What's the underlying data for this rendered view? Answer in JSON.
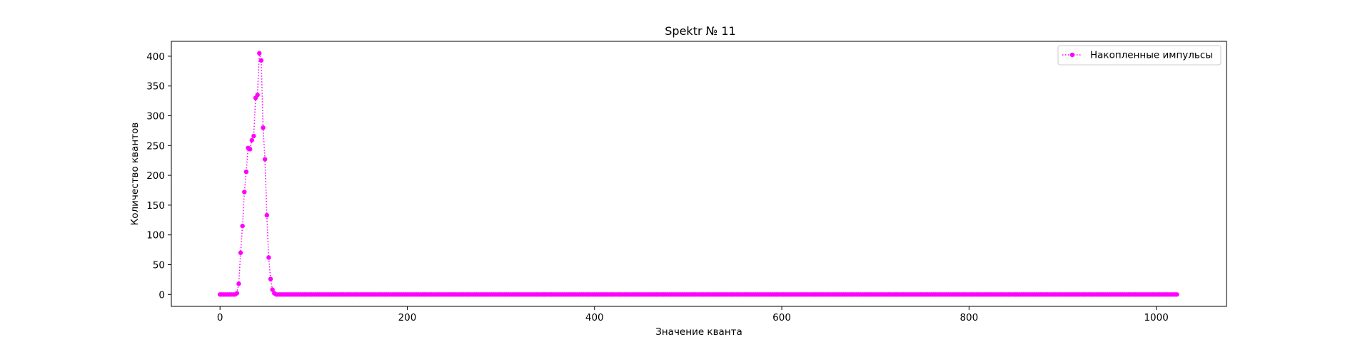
{
  "chart_data": {
    "type": "line",
    "title": "Spektr № 11",
    "xlabel": "Значение кванта",
    "ylabel": "Количество квантов",
    "xlim": [
      -52,
      1075
    ],
    "ylim": [
      -20,
      425
    ],
    "x_ticks": [
      0,
      200,
      400,
      600,
      800,
      1000
    ],
    "y_ticks": [
      0,
      50,
      100,
      150,
      200,
      250,
      300,
      350,
      400
    ],
    "grid": false,
    "legend_position": "top-right",
    "series": [
      {
        "name": "Накопленные импульсы",
        "color": "#ff00ff",
        "line_style": "dotted",
        "marker": "circle",
        "x_start": 0,
        "x_step": 2,
        "points_count": 512,
        "values_head": [
          0,
          0,
          0,
          0,
          0,
          0,
          0,
          0,
          0,
          2,
          18,
          70,
          115,
          172,
          206,
          246,
          244,
          259,
          266,
          330,
          335,
          405,
          393,
          280,
          227,
          133,
          62,
          26,
          8,
          2,
          0,
          0
        ],
        "values_tail_default": 0
      }
    ]
  }
}
